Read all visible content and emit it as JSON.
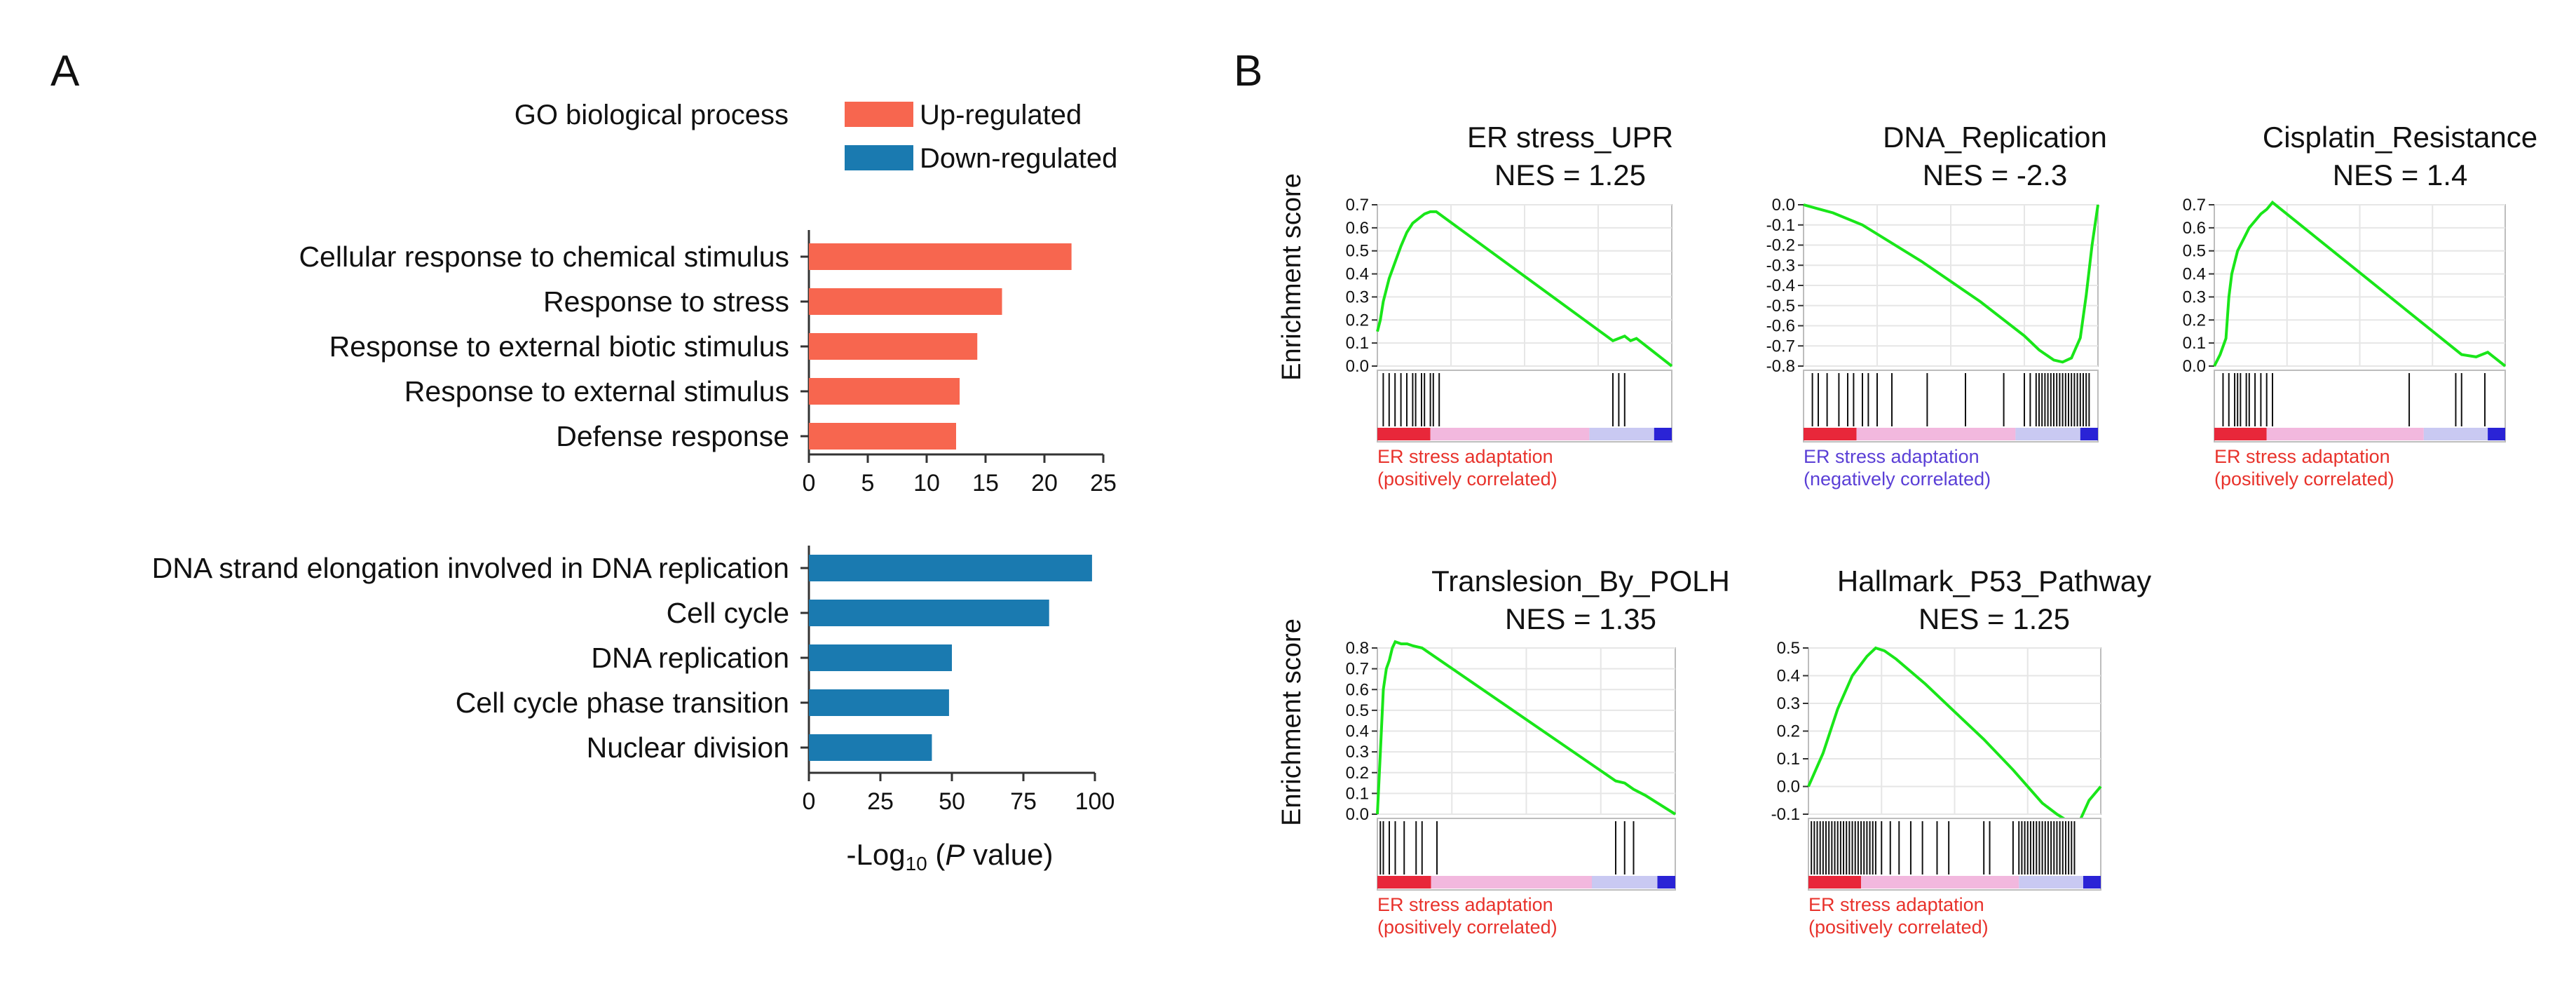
{
  "panel_labels": {
    "a": "A",
    "b": "B"
  },
  "colors": {
    "up": "#f7664f",
    "down": "#1a7ab0",
    "es_line": "#19e619",
    "axis": "#333333",
    "grid": "#e6e6e6",
    "caption_pos": "#e8322b",
    "caption_neg": "#5a3fd6",
    "bar_red": "#e8273a",
    "bar_pink": "#f2b8de",
    "bar_lav": "#c9c9f2",
    "bar_blue": "#2a23d6"
  },
  "chart_data": [
    {
      "id": "go-up",
      "type": "bar",
      "orientation": "horizontal",
      "title": "GO biological process",
      "legend": [
        {
          "label": "Up-regulated",
          "color": "#f7664f"
        },
        {
          "label": "Down-regulated",
          "color": "#1a7ab0"
        }
      ],
      "categories": [
        "Cellular response to chemical stimulus",
        "Response to stress",
        "Response to external biotic stimulus",
        "Response to external stimulus",
        "Defense response"
      ],
      "values": [
        22.3,
        16.4,
        14.3,
        12.8,
        12.5
      ],
      "xlim": [
        0,
        25
      ],
      "ticks": [
        0,
        5,
        10,
        15,
        20,
        25
      ],
      "tick_labels": [
        "0",
        "5",
        "10",
        "15",
        "20",
        "25"
      ]
    },
    {
      "id": "go-down",
      "type": "bar",
      "orientation": "horizontal",
      "categories": [
        "DNA strand elongation involved in DNA replication",
        "Cell cycle",
        "DNA replication",
        "Cell cycle phase transition",
        "Nuclear division"
      ],
      "values": [
        99,
        84,
        50,
        49,
        43
      ],
      "xlim": [
        0,
        100
      ],
      "ticks": [
        0,
        25,
        50,
        75,
        100
      ],
      "tick_labels": [
        "0",
        "25",
        "50",
        "75",
        "100"
      ],
      "xlabel": {
        "prefix": "-Log",
        "sub": "10",
        "open": " (",
        "italic": "P",
        "suffix": " value)"
      }
    },
    {
      "id": "gsea-er-stress-upr",
      "type": "line",
      "title": "ER stress_UPR",
      "nes": "NES = 1.25",
      "ylabel": "Enrichment score",
      "ylim": [
        0,
        0.7
      ],
      "y_ticks": [
        0,
        0.1,
        0.2,
        0.3,
        0.4,
        0.5,
        0.6,
        0.7
      ],
      "y_tick_labels": [
        "0.0",
        "0.1",
        "0.2",
        "0.3",
        "0.4",
        "0.5",
        "0.6",
        "0.7"
      ],
      "x": [
        0,
        0.01,
        0.02,
        0.04,
        0.06,
        0.08,
        0.1,
        0.12,
        0.14,
        0.16,
        0.18,
        0.2,
        0.8,
        0.84,
        0.86,
        0.88,
        0.93,
        1
      ],
      "y": [
        0.15,
        0.2,
        0.28,
        0.38,
        0.45,
        0.52,
        0.58,
        0.62,
        0.64,
        0.66,
        0.67,
        0.67,
        0.11,
        0.13,
        0.11,
        0.12,
        0.07,
        0.0
      ],
      "hits": [
        0.02,
        0.04,
        0.06,
        0.08,
        0.1,
        0.12,
        0.13,
        0.15,
        0.16,
        0.18,
        0.19,
        0.21,
        0.8,
        0.82,
        0.84
      ],
      "caption_line1": "ER stress adaptation",
      "caption_line2": "(positively correlated)",
      "caption_tone": "pos"
    },
    {
      "id": "gsea-dna-replication",
      "type": "line",
      "title": "DNA_Replication",
      "nes": "NES = -2.3",
      "ylim": [
        -0.8,
        0.0
      ],
      "y_ticks": [
        0,
        -0.1,
        -0.2,
        -0.3,
        -0.4,
        -0.5,
        -0.6,
        -0.7,
        -0.8
      ],
      "y_tick_labels": [
        "0.0",
        "-0.1",
        "-0.2",
        "-0.3",
        "-0.4",
        "-0.5",
        "-0.6",
        "-0.7",
        "-0.8"
      ],
      "x": [
        0,
        0.05,
        0.1,
        0.2,
        0.4,
        0.6,
        0.75,
        0.8,
        0.85,
        0.88,
        0.91,
        0.94,
        0.96,
        0.98,
        1
      ],
      "y": [
        0,
        -0.02,
        -0.04,
        -0.1,
        -0.28,
        -0.48,
        -0.65,
        -0.72,
        -0.77,
        -0.78,
        -0.76,
        -0.66,
        -0.45,
        -0.2,
        0.0
      ],
      "hits": [
        0.03,
        0.05,
        0.08,
        0.12,
        0.15,
        0.17,
        0.2,
        0.22,
        0.25,
        0.3,
        0.42,
        0.55,
        0.68,
        0.75,
        0.77,
        0.79,
        0.8,
        0.81,
        0.82,
        0.83,
        0.84,
        0.85,
        0.86,
        0.87,
        0.88,
        0.89,
        0.9,
        0.91,
        0.92,
        0.93,
        0.94,
        0.95,
        0.96,
        0.97
      ],
      "caption_line1": "ER stress adaptation",
      "caption_line2": "(negatively correlated)",
      "caption_tone": "neg"
    },
    {
      "id": "gsea-cisplatin-resistance",
      "type": "line",
      "title": "Cisplatin_Resistance",
      "nes": "NES = 1.4",
      "ylim": [
        0,
        0.7
      ],
      "y_ticks": [
        0,
        0.1,
        0.2,
        0.3,
        0.4,
        0.5,
        0.6,
        0.7
      ],
      "y_tick_labels": [
        "0.0",
        "0.1",
        "0.2",
        "0.3",
        "0.4",
        "0.5",
        "0.6",
        "0.7"
      ],
      "x": [
        0,
        0.02,
        0.04,
        0.05,
        0.06,
        0.08,
        0.1,
        0.12,
        0.14,
        0.16,
        0.18,
        0.2,
        0.85,
        0.9,
        0.94,
        1
      ],
      "y": [
        0,
        0.05,
        0.12,
        0.3,
        0.4,
        0.5,
        0.55,
        0.6,
        0.63,
        0.66,
        0.68,
        0.71,
        0.05,
        0.04,
        0.06,
        0.0
      ],
      "hits": [
        0.03,
        0.05,
        0.07,
        0.08,
        0.09,
        0.11,
        0.12,
        0.14,
        0.16,
        0.18,
        0.2,
        0.67,
        0.83,
        0.85,
        0.93
      ],
      "caption_line1": "ER stress adaptation",
      "caption_line2": "(positively correlated)",
      "caption_tone": "pos"
    },
    {
      "id": "gsea-translesion-by-polh",
      "type": "line",
      "title": "Translesion_By_POLH",
      "nes": "NES = 1.35",
      "ylabel": "Enrichment score",
      "ylim": [
        0,
        0.8
      ],
      "y_ticks": [
        0,
        0.1,
        0.2,
        0.3,
        0.4,
        0.5,
        0.6,
        0.7,
        0.8
      ],
      "y_tick_labels": [
        "0.0",
        "0.1",
        "0.2",
        "0.3",
        "0.4",
        "0.5",
        "0.6",
        "0.7",
        "0.8"
      ],
      "x": [
        0,
        0.01,
        0.02,
        0.03,
        0.04,
        0.05,
        0.06,
        0.08,
        0.1,
        0.12,
        0.15,
        0.8,
        0.83,
        0.86,
        0.9,
        1
      ],
      "y": [
        0,
        0.3,
        0.6,
        0.7,
        0.74,
        0.8,
        0.83,
        0.82,
        0.82,
        0.81,
        0.8,
        0.16,
        0.15,
        0.12,
        0.09,
        0.0
      ],
      "hits": [
        0.01,
        0.02,
        0.04,
        0.06,
        0.09,
        0.13,
        0.15,
        0.2,
        0.8,
        0.83,
        0.86
      ],
      "caption_line1": "ER stress adaptation",
      "caption_line2": "(positively correlated)",
      "caption_tone": "pos"
    },
    {
      "id": "gsea-hallmark-p53-pathway",
      "type": "line",
      "title": "Hallmark_P53_Pathway",
      "nes": "NES = 1.25",
      "ylim": [
        -0.1,
        0.5
      ],
      "y_ticks": [
        0.5,
        0.4,
        0.3,
        0.2,
        0.1,
        0,
        -0.1
      ],
      "y_tick_labels": [
        "0.5",
        "0.4",
        "0.3",
        "0.2",
        "0.1",
        "0.0",
        "-0.1"
      ],
      "x": [
        0,
        0.05,
        0.1,
        0.15,
        0.2,
        0.23,
        0.26,
        0.3,
        0.4,
        0.5,
        0.6,
        0.7,
        0.8,
        0.85,
        0.88,
        0.9,
        0.93,
        0.96,
        1
      ],
      "y": [
        0,
        0.12,
        0.28,
        0.4,
        0.47,
        0.5,
        0.49,
        0.46,
        0.37,
        0.27,
        0.17,
        0.06,
        -0.06,
        -0.1,
        -0.12,
        -0.12,
        -0.12,
        -0.05,
        0.0
      ],
      "hits": [
        0.01,
        0.02,
        0.03,
        0.04,
        0.05,
        0.06,
        0.07,
        0.08,
        0.09,
        0.1,
        0.11,
        0.12,
        0.13,
        0.14,
        0.15,
        0.16,
        0.17,
        0.18,
        0.19,
        0.2,
        0.21,
        0.22,
        0.23,
        0.25,
        0.28,
        0.31,
        0.35,
        0.39,
        0.44,
        0.48,
        0.6,
        0.62,
        0.7,
        0.72,
        0.73,
        0.74,
        0.75,
        0.76,
        0.77,
        0.78,
        0.79,
        0.8,
        0.81,
        0.82,
        0.83,
        0.84,
        0.85,
        0.86,
        0.87,
        0.88,
        0.89,
        0.9,
        0.91
      ],
      "caption_line1": "ER stress adaptation",
      "caption_line2": "(positively correlated)",
      "caption_tone": "pos"
    }
  ]
}
